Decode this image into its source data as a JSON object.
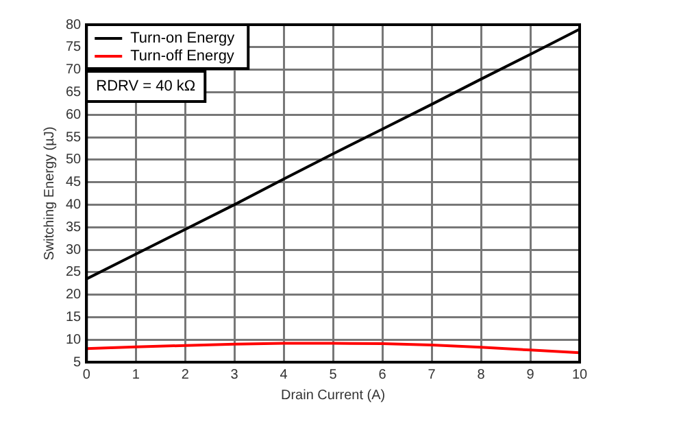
{
  "chart_data": {
    "type": "line",
    "xlabel": "Drain Current (A)",
    "ylabel": "Switching Energy (µJ)",
    "x": [
      0,
      1,
      2,
      3,
      4,
      5,
      6,
      7,
      8,
      9,
      10
    ],
    "series": [
      {
        "name": "Turn-on Energy",
        "color": "#000000",
        "values": [
          23.5,
          29,
          34.5,
          40,
          45.7,
          51.3,
          56.8,
          62.3,
          67.9,
          73.4,
          79
        ]
      },
      {
        "name": "Turn-off Energy",
        "color": "#ff0000",
        "values": [
          8,
          8.4,
          8.7,
          9,
          9.2,
          9.2,
          9.1,
          8.8,
          8.3,
          7.7,
          7.1
        ]
      }
    ],
    "xlim": [
      0,
      10
    ],
    "xticks": [
      0,
      1,
      2,
      3,
      4,
      5,
      6,
      7,
      8,
      9,
      10
    ],
    "ylim": [
      5,
      80
    ],
    "yticks": [
      5,
      10,
      15,
      20,
      25,
      30,
      35,
      40,
      45,
      50,
      55,
      60,
      65,
      70,
      75,
      80
    ],
    "grid": true,
    "legend": "top left",
    "marker": "none",
    "line_style": "solid",
    "annotations": [
      "RDRV = 40 kΩ"
    ]
  }
}
